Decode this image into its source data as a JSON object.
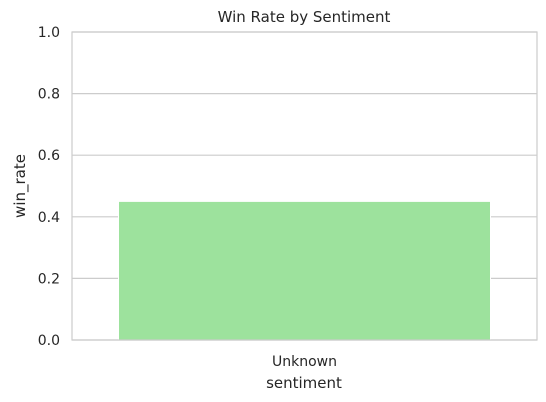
{
  "chart_data": {
    "type": "bar",
    "title": "Win Rate by Sentiment",
    "xlabel": "sentiment",
    "ylabel": "win_rate",
    "categories": [
      "Unknown"
    ],
    "values": [
      0.45
    ],
    "ylim": [
      0,
      1
    ],
    "yticks": [
      "0.0",
      "0.2",
      "0.4",
      "0.6",
      "0.8",
      "1.0"
    ],
    "grid": "horizontal",
    "bar_color": "#9de29d"
  }
}
